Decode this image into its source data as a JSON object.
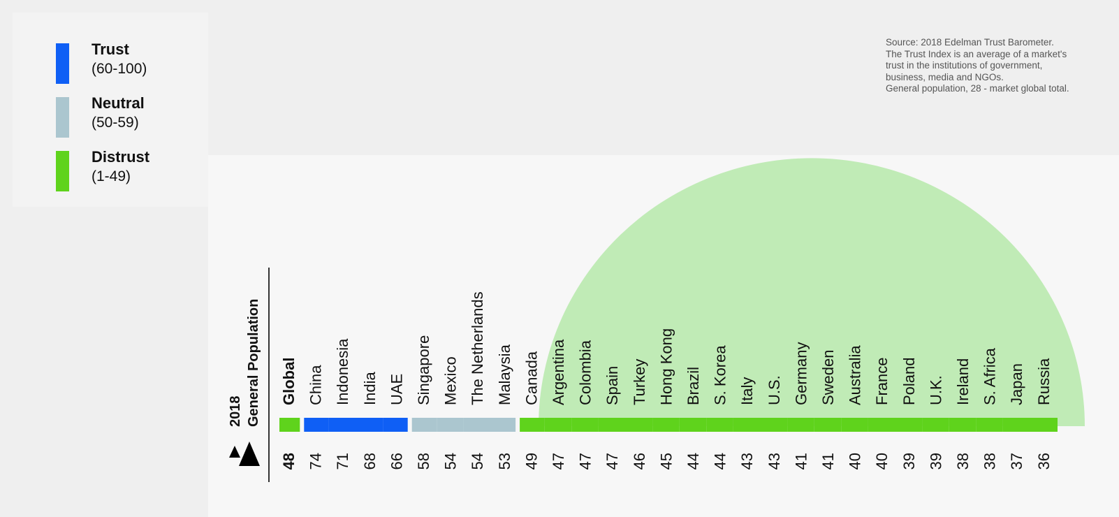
{
  "legend": {
    "items": [
      {
        "name": "Trust",
        "range": "(60-100)",
        "color": "#0f5ff5"
      },
      {
        "name": "Neutral",
        "range": "(50-59)",
        "color": "#abc6cf"
      },
      {
        "name": "Distrust",
        "range": "(1-49)",
        "color": "#5fd31c"
      }
    ]
  },
  "source": {
    "lines": [
      "Source: 2018 Edelman Trust Barometer.",
      "The Trust Index is an average of a market's",
      "trust in the institutions of government,",
      "business, media and NGOs.",
      "General population, 28 - market global total."
    ]
  },
  "chart_data": {
    "type": "bar",
    "title": "",
    "axis_label_line1": "2018",
    "axis_label_line2": "General Population",
    "categories": [
      "Global",
      "China",
      "Indonesia",
      "India",
      "UAE",
      "Singapore",
      "Mexico",
      "The Netherlands",
      "Malaysia",
      "Canada",
      "Argentina",
      "Colombia",
      "Spain",
      "Turkey",
      "Hong Kong",
      "Brazil",
      "S. Korea",
      "Italy",
      "U.S.",
      "Germany",
      "Sweden",
      "Australia",
      "France",
      "Poland",
      "U.K.",
      "Ireland",
      "S. Africa",
      "Japan",
      "Russia"
    ],
    "values": [
      48,
      74,
      71,
      68,
      66,
      58,
      54,
      54,
      53,
      49,
      47,
      47,
      47,
      46,
      45,
      44,
      44,
      43,
      43,
      41,
      41,
      40,
      40,
      39,
      39,
      38,
      38,
      37,
      36
    ],
    "groups": [
      "distrust",
      "trust",
      "trust",
      "trust",
      "trust",
      "neutral",
      "neutral",
      "neutral",
      "neutral",
      "distrust",
      "distrust",
      "distrust",
      "distrust",
      "distrust",
      "distrust",
      "distrust",
      "distrust",
      "distrust",
      "distrust",
      "distrust",
      "distrust",
      "distrust",
      "distrust",
      "distrust",
      "distrust",
      "distrust",
      "distrust",
      "distrust",
      "distrust"
    ],
    "colors": {
      "trust": "#0f5ff5",
      "neutral": "#abc6cf",
      "distrust": "#5fd31c",
      "arc": "#c0ebb6"
    }
  }
}
